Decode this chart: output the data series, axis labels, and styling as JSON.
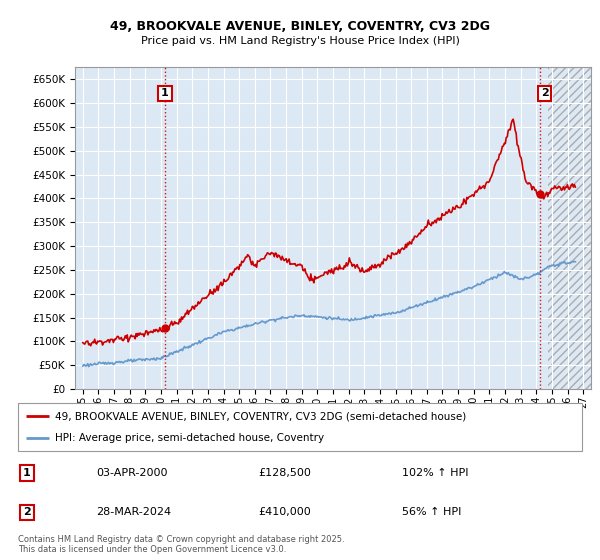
{
  "title": "49, BROOKVALE AVENUE, BINLEY, COVENTRY, CV3 2DG",
  "subtitle": "Price paid vs. HM Land Registry's House Price Index (HPI)",
  "red_label": "49, BROOKVALE AVENUE, BINLEY, COVENTRY, CV3 2DG (semi-detached house)",
  "blue_label": "HPI: Average price, semi-detached house, Coventry",
  "annotation1_date": "03-APR-2000",
  "annotation1_price": "£128,500",
  "annotation1_hpi": "102% ↑ HPI",
  "annotation2_date": "28-MAR-2024",
  "annotation2_price": "£410,000",
  "annotation2_hpi": "56% ↑ HPI",
  "footer": "Contains HM Land Registry data © Crown copyright and database right 2025.\nThis data is licensed under the Open Government Licence v3.0.",
  "ylabel_ticks": [
    "£0",
    "£50K",
    "£100K",
    "£150K",
    "£200K",
    "£250K",
    "£300K",
    "£350K",
    "£400K",
    "£450K",
    "£500K",
    "£550K",
    "£600K",
    "£650K"
  ],
  "ytick_vals": [
    0,
    50000,
    100000,
    150000,
    200000,
    250000,
    300000,
    350000,
    400000,
    450000,
    500000,
    550000,
    600000,
    650000
  ],
  "ylim": [
    0,
    675000
  ],
  "xlim_start": 1994.5,
  "xlim_end": 2027.5,
  "background_color": "#dce9f5",
  "grid_color": "#ffffff",
  "red_color": "#cc0000",
  "blue_color": "#6699cc",
  "hatch_start": 2024.75
}
